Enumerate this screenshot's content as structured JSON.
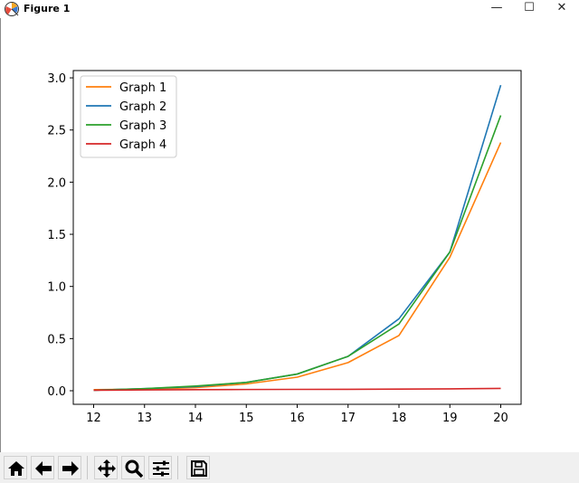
{
  "window": {
    "title": "Figure 1",
    "minimize_glyph": "—",
    "maximize_glyph": "☐",
    "close_glyph": "✕"
  },
  "toolbar": {
    "buttons": [
      "home-icon",
      "back-icon",
      "forward-icon",
      "pan-icon",
      "zoom-icon",
      "configure-subplots-icon",
      "save-icon"
    ]
  },
  "chart_data": {
    "type": "line",
    "title": "",
    "xlabel": "",
    "ylabel": "",
    "x": [
      12,
      13,
      14,
      15,
      16,
      17,
      18,
      19,
      20
    ],
    "xticks": [
      "12",
      "13",
      "14",
      "15",
      "16",
      "17",
      "18",
      "19",
      "20"
    ],
    "yticks": [
      "0.0",
      "0.5",
      "1.0",
      "1.5",
      "2.0",
      "2.5",
      "3.0"
    ],
    "ylim": [
      -0.13,
      3.07
    ],
    "xlim": [
      11.6,
      20.4
    ],
    "grid": false,
    "legend_position": "upper-left",
    "series": [
      {
        "name": "Graph 1",
        "color": "#ff7f0e",
        "values": [
          0.01,
          0.015,
          0.03,
          0.065,
          0.13,
          0.27,
          0.53,
          1.28,
          2.38
        ]
      },
      {
        "name": "Graph 2",
        "color": "#1f77b4",
        "values": [
          0.005,
          0.02,
          0.04,
          0.08,
          0.16,
          0.33,
          0.69,
          1.33,
          2.93
        ]
      },
      {
        "name": "Graph 3",
        "color": "#2ca02c",
        "values": [
          0.005,
          0.02,
          0.045,
          0.08,
          0.16,
          0.33,
          0.64,
          1.33,
          2.64
        ]
      },
      {
        "name": "Graph 4",
        "color": "#d62728",
        "values": [
          0.005,
          0.008,
          0.01,
          0.012,
          0.013,
          0.014,
          0.016,
          0.018,
          0.022
        ]
      }
    ]
  }
}
